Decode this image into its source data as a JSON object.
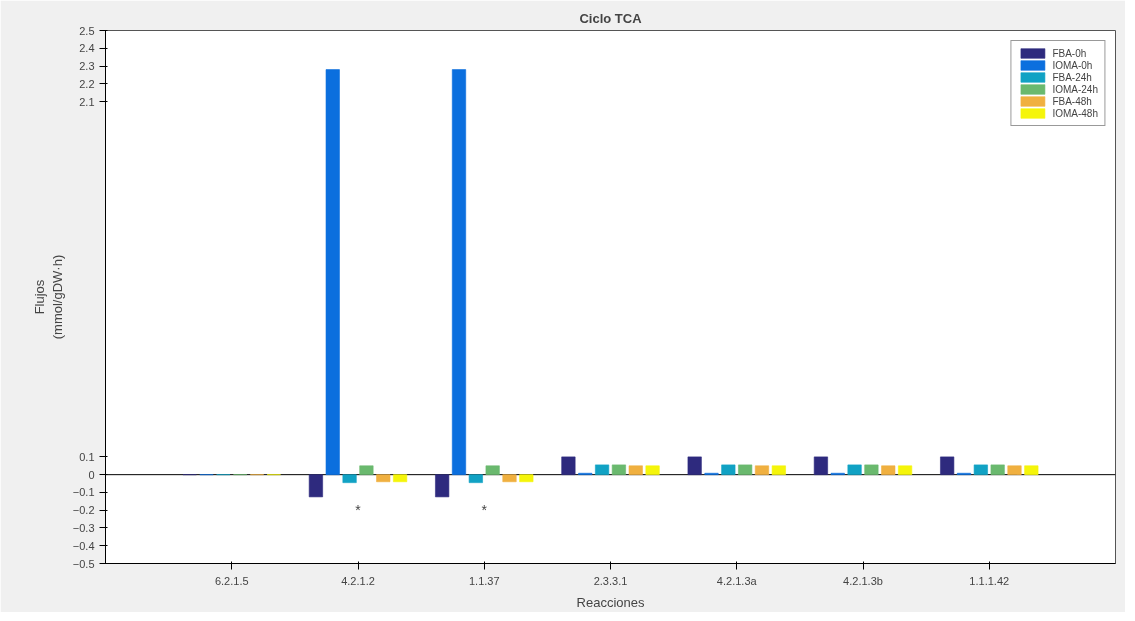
{
  "chart_data": {
    "type": "bar",
    "title": "Ciclo TCA",
    "xlabel": "Reacciones",
    "ylabel": "Flujos\n(mmol/gDW·h)",
    "categories": [
      "6.2.1.5",
      "4.2.1.2",
      "1.1.37",
      "2.3.3.1",
      "4.2.1.3a",
      "4.2.1.3b",
      "1.1.1.42"
    ],
    "ylim": [
      -0.5,
      2.5
    ],
    "yticks": [
      -0.5,
      -0.4,
      -0.3,
      -0.2,
      -0.1,
      0,
      0.1,
      2.1,
      2.2,
      2.3,
      2.4,
      2.5
    ],
    "legend": "top right",
    "annotations": [
      "*",
      "*"
    ],
    "series": [
      {
        "name": "FBA-0h",
        "color": "#2e2a7e",
        "values": [
          0,
          -0.125,
          -0.125,
          0.1,
          0.1,
          0.1,
          0.1
        ]
      },
      {
        "name": "IOMA-0h",
        "color": "#0b6fde",
        "values": [
          0,
          2.28,
          2.28,
          0.008,
          0.008,
          0.008,
          0.008
        ]
      },
      {
        "name": "FBA-24h",
        "color": "#11a2c4",
        "values": [
          0,
          -0.045,
          -0.045,
          0.055,
          0.055,
          0.055,
          0.055
        ]
      },
      {
        "name": "IOMA-24h",
        "color": "#6ab96e",
        "values": [
          0,
          0.05,
          0.05,
          0.055,
          0.055,
          0.055,
          0.055
        ]
      },
      {
        "name": "FBA-48h",
        "color": "#f0b040",
        "values": [
          0,
          -0.04,
          -0.04,
          0.05,
          0.05,
          0.05,
          0.05
        ]
      },
      {
        "name": "IOMA-48h",
        "color": "#f5f50a",
        "values": [
          0,
          -0.04,
          -0.04,
          0.05,
          0.05,
          0.05,
          0.05
        ]
      }
    ]
  }
}
